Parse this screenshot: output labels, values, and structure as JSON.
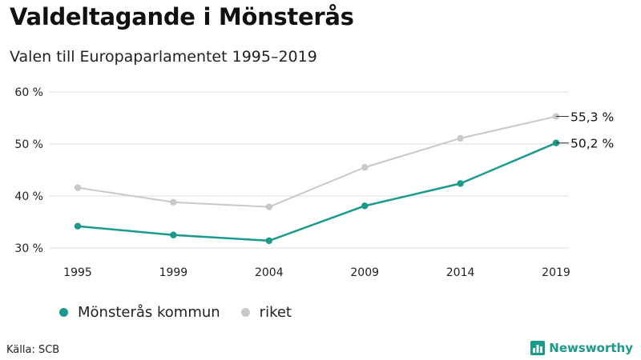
{
  "header": {
    "title": "Valdeltagande i Mönsterås",
    "subtitle": "Valen till Europaparlamentet 1995–2019"
  },
  "footer": {
    "source": "Källa: SCB",
    "brand": "Newsworthy",
    "brand_icon": "bar-chart-logo-icon"
  },
  "colors": {
    "kommun": "#1a9a8b",
    "riket": "#c8c8c8",
    "grid": "#dddddd",
    "brand": "#1a9a8b"
  },
  "chart_data": {
    "type": "line",
    "title": "Valdeltagande i Mönsterås",
    "subtitle": "Valen till Europaparlamentet 1995–2019",
    "xlabel": "",
    "ylabel": "",
    "x": [
      "1995",
      "1999",
      "2004",
      "2009",
      "2014",
      "2019"
    ],
    "yticks": [
      "30 %",
      "40 %",
      "50 %",
      "60 %"
    ],
    "ylim": [
      30,
      60
    ],
    "grid": true,
    "legend_position": "bottom-left",
    "series": [
      {
        "name": "Mönsterås kommun",
        "values": [
          34.2,
          32.5,
          31.4,
          38.1,
          42.4,
          50.2
        ],
        "end_label": "50,2 %"
      },
      {
        "name": "riket",
        "values": [
          41.6,
          38.8,
          37.9,
          45.5,
          51.1,
          55.3
        ],
        "end_label": "55,3 %"
      }
    ]
  }
}
